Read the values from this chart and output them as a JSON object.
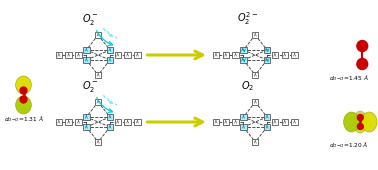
{
  "bg_color": "#ffffff",
  "mol_red_color": "#cc0000",
  "mol_yellow_bright": "#dddd00",
  "mol_yellow_dark": "#aaaa00",
  "box_edge": "#555555",
  "box_face_white": "#ffffff",
  "box_face_cyan": "#aaeeff",
  "line_color": "#333333",
  "arrow_yellow": "#cccc00",
  "arrow_cyan": "#00ccdd",
  "text_color": "#000000",
  "top_left_label": "$O_2^-$",
  "top_right_label": "$O_2^{2-}$",
  "bot_left_label": "$O_2^-$",
  "bot_right_label": "$O_2$",
  "label_tr": "$d_{O\\text{-}O} = 1.45\\ \\AA$",
  "label_bl": "$d_{O\\text{-}O} = 1.31\\ \\AA$",
  "label_br": "$d_{O\\text{-}O} = 1.20\\ \\AA$"
}
